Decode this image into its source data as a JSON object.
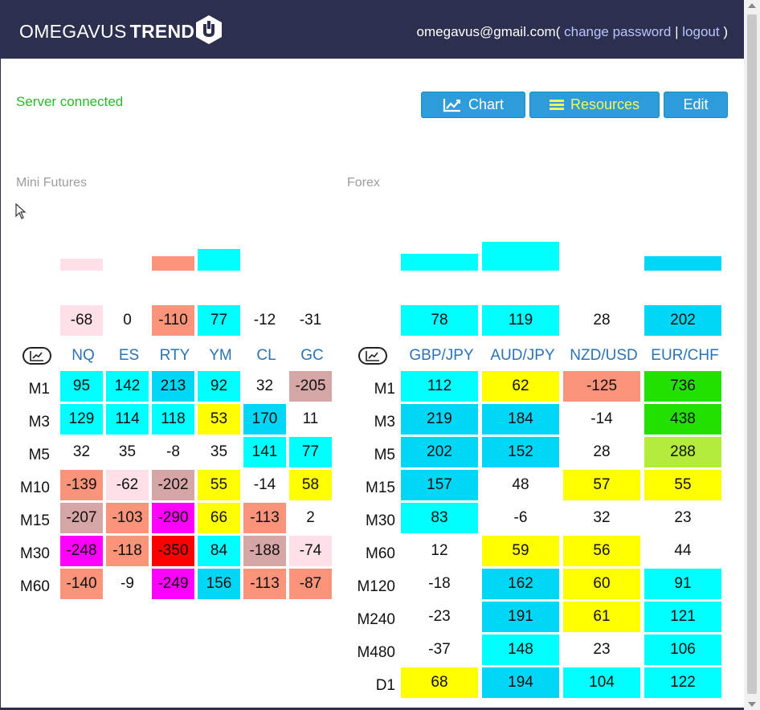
{
  "header": {
    "brand_light": "OMEGAVUS",
    "brand_bold": "TREND",
    "logo_icon": "hexagon-u-logo",
    "email": "omegavus@gmail.com",
    "open_paren": "(",
    "change_password": "change password",
    "separator": "|",
    "logout": "logout",
    "close_paren": ")"
  },
  "status": "Server connected",
  "toolbar": {
    "chart_label": "Chart",
    "resources_label": "Resources",
    "edit_label": "Edit"
  },
  "colors": {
    "cyan": "#00ffff",
    "sky": "#00d6f5",
    "yellow": "#ffff00",
    "salmon": "#f99379",
    "pink": "#ffe0e8",
    "rosy": "#d6a5a5",
    "magenta": "#ff00ff",
    "red": "#ff0000",
    "green": "#22e000",
    "lime": "#b4ec3c"
  },
  "mini_futures": {
    "title": "Mini Futures",
    "bars": [
      {
        "color": "pink",
        "value": 5
      },
      {
        "color": "none",
        "value": 0
      },
      {
        "color": "salmon",
        "value": 6
      },
      {
        "color": "cyan",
        "value": 9
      },
      {
        "color": "none",
        "value": 0
      },
      {
        "color": "none",
        "value": 0
      }
    ],
    "totals": [
      {
        "v": "-68",
        "c": "pink"
      },
      {
        "v": "0",
        "c": "none"
      },
      {
        "v": "-110",
        "c": "salmon"
      },
      {
        "v": "77",
        "c": "cyan"
      },
      {
        "v": "-12",
        "c": "none"
      },
      {
        "v": "-31",
        "c": "none"
      }
    ],
    "columns": [
      "NQ",
      "ES",
      "RTY",
      "YM",
      "CL",
      "GC"
    ],
    "rows": [
      {
        "label": "M1",
        "cells": [
          {
            "v": "95",
            "c": "cyan"
          },
          {
            "v": "142",
            "c": "cyan"
          },
          {
            "v": "213",
            "c": "sky"
          },
          {
            "v": "92",
            "c": "cyan"
          },
          {
            "v": "32",
            "c": "none"
          },
          {
            "v": "-205",
            "c": "rosy"
          }
        ]
      },
      {
        "label": "M3",
        "cells": [
          {
            "v": "129",
            "c": "cyan"
          },
          {
            "v": "114",
            "c": "cyan"
          },
          {
            "v": "118",
            "c": "cyan"
          },
          {
            "v": "53",
            "c": "yellow"
          },
          {
            "v": "170",
            "c": "sky"
          },
          {
            "v": "11",
            "c": "none"
          }
        ]
      },
      {
        "label": "M5",
        "cells": [
          {
            "v": "32",
            "c": "none"
          },
          {
            "v": "35",
            "c": "none"
          },
          {
            "v": "-8",
            "c": "none"
          },
          {
            "v": "35",
            "c": "none"
          },
          {
            "v": "141",
            "c": "cyan"
          },
          {
            "v": "77",
            "c": "cyan"
          }
        ]
      },
      {
        "label": "M10",
        "cells": [
          {
            "v": "-139",
            "c": "salmon"
          },
          {
            "v": "-62",
            "c": "pink"
          },
          {
            "v": "-202",
            "c": "rosy"
          },
          {
            "v": "55",
            "c": "yellow"
          },
          {
            "v": "-14",
            "c": "none"
          },
          {
            "v": "58",
            "c": "yellow"
          }
        ]
      },
      {
        "label": "M15",
        "cells": [
          {
            "v": "-207",
            "c": "rosy"
          },
          {
            "v": "-103",
            "c": "salmon"
          },
          {
            "v": "-290",
            "c": "magenta"
          },
          {
            "v": "66",
            "c": "yellow"
          },
          {
            "v": "-113",
            "c": "salmon"
          },
          {
            "v": "2",
            "c": "none"
          }
        ]
      },
      {
        "label": "M30",
        "cells": [
          {
            "v": "-248",
            "c": "magenta"
          },
          {
            "v": "-118",
            "c": "salmon"
          },
          {
            "v": "-350",
            "c": "red"
          },
          {
            "v": "84",
            "c": "cyan"
          },
          {
            "v": "-188",
            "c": "rosy"
          },
          {
            "v": "-74",
            "c": "pink"
          }
        ]
      },
      {
        "label": "M60",
        "cells": [
          {
            "v": "-140",
            "c": "salmon"
          },
          {
            "v": "-9",
            "c": "none"
          },
          {
            "v": "-249",
            "c": "magenta"
          },
          {
            "v": "156",
            "c": "sky"
          },
          {
            "v": "-113",
            "c": "salmon"
          },
          {
            "v": "-87",
            "c": "salmon"
          }
        ]
      }
    ]
  },
  "forex": {
    "title": "Forex",
    "bars": [
      {
        "color": "cyan",
        "value": 7
      },
      {
        "color": "cyan",
        "value": 12
      },
      {
        "color": "none",
        "value": 0
      },
      {
        "color": "sky",
        "value": 6
      }
    ],
    "totals": [
      {
        "v": "78",
        "c": "cyan"
      },
      {
        "v": "119",
        "c": "cyan"
      },
      {
        "v": "28",
        "c": "none"
      },
      {
        "v": "202",
        "c": "sky"
      }
    ],
    "columns": [
      "GBP/JPY",
      "AUD/JPY",
      "NZD/USD",
      "EUR/CHF"
    ],
    "rows": [
      {
        "label": "M1",
        "cells": [
          {
            "v": "112",
            "c": "cyan"
          },
          {
            "v": "62",
            "c": "yellow"
          },
          {
            "v": "-125",
            "c": "salmon"
          },
          {
            "v": "736",
            "c": "green"
          }
        ]
      },
      {
        "label": "M3",
        "cells": [
          {
            "v": "219",
            "c": "sky"
          },
          {
            "v": "184",
            "c": "sky"
          },
          {
            "v": "-14",
            "c": "none"
          },
          {
            "v": "438",
            "c": "green"
          }
        ]
      },
      {
        "label": "M5",
        "cells": [
          {
            "v": "202",
            "c": "sky"
          },
          {
            "v": "152",
            "c": "sky"
          },
          {
            "v": "28",
            "c": "none"
          },
          {
            "v": "288",
            "c": "lime"
          }
        ]
      },
      {
        "label": "M15",
        "cells": [
          {
            "v": "157",
            "c": "sky"
          },
          {
            "v": "48",
            "c": "none"
          },
          {
            "v": "57",
            "c": "yellow"
          },
          {
            "v": "55",
            "c": "yellow"
          }
        ]
      },
      {
        "label": "M30",
        "cells": [
          {
            "v": "83",
            "c": "cyan"
          },
          {
            "v": "-6",
            "c": "none"
          },
          {
            "v": "32",
            "c": "none"
          },
          {
            "v": "23",
            "c": "none"
          }
        ]
      },
      {
        "label": "M60",
        "cells": [
          {
            "v": "12",
            "c": "none"
          },
          {
            "v": "59",
            "c": "yellow"
          },
          {
            "v": "56",
            "c": "yellow"
          },
          {
            "v": "44",
            "c": "none"
          }
        ]
      },
      {
        "label": "M120",
        "cells": [
          {
            "v": "-18",
            "c": "none"
          },
          {
            "v": "162",
            "c": "sky"
          },
          {
            "v": "60",
            "c": "yellow"
          },
          {
            "v": "91",
            "c": "cyan"
          }
        ]
      },
      {
        "label": "M240",
        "cells": [
          {
            "v": "-23",
            "c": "none"
          },
          {
            "v": "191",
            "c": "sky"
          },
          {
            "v": "61",
            "c": "yellow"
          },
          {
            "v": "121",
            "c": "cyan"
          }
        ]
      },
      {
        "label": "M480",
        "cells": [
          {
            "v": "-37",
            "c": "none"
          },
          {
            "v": "148",
            "c": "cyan"
          },
          {
            "v": "23",
            "c": "none"
          },
          {
            "v": "106",
            "c": "cyan"
          }
        ]
      },
      {
        "label": "D1",
        "cells": [
          {
            "v": "68",
            "c": "yellow"
          },
          {
            "v": "194",
            "c": "sky"
          },
          {
            "v": "104",
            "c": "cyan"
          },
          {
            "v": "122",
            "c": "cyan"
          }
        ]
      }
    ]
  }
}
